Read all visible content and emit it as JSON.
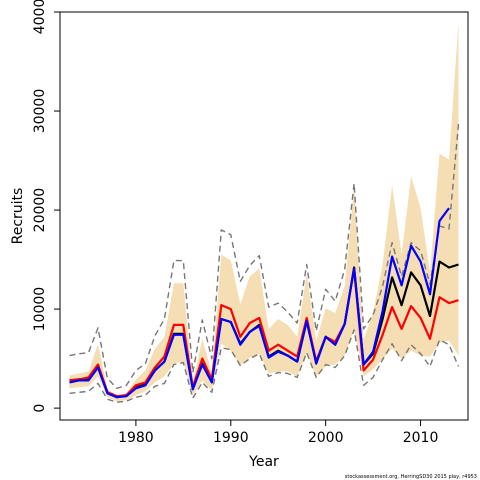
{
  "chart_data": {
    "type": "line",
    "xlabel": "Year",
    "ylabel": "Recruits",
    "xlim": [
      1972,
      2015
    ],
    "ylim": [
      -1200,
      40000
    ],
    "x_ticks": [
      1980,
      1990,
      2000,
      2010
    ],
    "y_ticks": [
      0,
      10000,
      20000,
      30000,
      40000
    ],
    "grid": false,
    "legend": "none",
    "footnote": "stockassessment.org, HerringSD30 2015 play, r4953",
    "x": [
      1973,
      1974,
      1975,
      1976,
      1977,
      1978,
      1979,
      1980,
      1981,
      1982,
      1983,
      1984,
      1985,
      1986,
      1987,
      1988,
      1989,
      1990,
      1991,
      1992,
      1993,
      1994,
      1995,
      1996,
      1997,
      1998,
      1999,
      2000,
      2001,
      2002,
      2003,
      2004,
      2005,
      2006,
      2007,
      2008,
      2009,
      2010,
      2011,
      2012,
      2013,
      2014
    ],
    "band": {
      "color": "#f5deb3",
      "lower": [
        2000,
        2100,
        2200,
        3200,
        1100,
        700,
        800,
        1300,
        1700,
        2600,
        3200,
        4500,
        4700,
        1300,
        2800,
        1800,
        6500,
        5800,
        4300,
        5100,
        5500,
        3500,
        3700,
        3700,
        3200,
        5500,
        3200,
        4200,
        4400,
        5300,
        8000,
        3200,
        3900,
        5000,
        6000,
        5000,
        5800,
        5300,
        5200,
        6600,
        6800,
        5300
      ],
      "upper": [
        3300,
        3500,
        3700,
        6500,
        2000,
        1200,
        1500,
        2900,
        3800,
        6000,
        7200,
        12600,
        12600,
        2600,
        7000,
        3600,
        15500,
        14900,
        10500,
        13300,
        14100,
        8000,
        9000,
        8400,
        7200,
        13600,
        6800,
        10100,
        9600,
        12300,
        22300,
        6900,
        9700,
        14500,
        22500,
        15500,
        23400,
        20200,
        13700,
        25700,
        25100,
        39000
      ]
    },
    "series": [
      {
        "color": "#000000",
        "dashed": false,
        "values": [
          2800,
          2900,
          3000,
          4300,
          1600,
          1100,
          1300,
          2100,
          2400,
          3800,
          4700,
          7500,
          7500,
          2100,
          4500,
          2700,
          9000,
          8700,
          6500,
          7700,
          8400,
          5200,
          5800,
          5300,
          4700,
          8800,
          4700,
          7200,
          6400,
          8500,
          14200,
          4400,
          5500,
          9000,
          13200,
          10400,
          13700,
          12400,
          9300,
          14800,
          14200,
          14500
        ]
      },
      {
        "color": "#ff0000",
        "dashed": false,
        "values": [
          2800,
          2900,
          3100,
          4400,
          1600,
          1200,
          1300,
          2300,
          2600,
          4100,
          5200,
          8400,
          8400,
          2100,
          5000,
          2900,
          10400,
          10000,
          7200,
          8600,
          9100,
          5800,
          6400,
          5800,
          5200,
          9100,
          4700,
          7200,
          6700,
          8500,
          14100,
          3800,
          4900,
          7400,
          10200,
          8000,
          10300,
          9100,
          7000,
          11200,
          10600,
          10900
        ]
      },
      {
        "color": "#0000ff",
        "dashed": false,
        "values": [
          2600,
          2800,
          2800,
          4100,
          1500,
          1100,
          1200,
          2000,
          2300,
          3800,
          4700,
          7400,
          7400,
          1900,
          4400,
          2600,
          9000,
          8700,
          6400,
          7700,
          8300,
          5100,
          5700,
          5300,
          4700,
          8800,
          4500,
          7200,
          6400,
          8500,
          14100,
          4400,
          5700,
          9800,
          15300,
          12400,
          16400,
          14800,
          11500,
          18900,
          20200,
          null
        ]
      },
      {
        "color": "#777777",
        "dashed": true,
        "values": [
          5300,
          5500,
          5600,
          8100,
          3000,
          2000,
          2300,
          3800,
          4500,
          7300,
          9000,
          14900,
          14900,
          3600,
          8900,
          5000,
          18000,
          17500,
          12800,
          14400,
          15400,
          10200,
          10600,
          9700,
          8600,
          14500,
          7800,
          12000,
          10800,
          14000,
          22700,
          8000,
          9400,
          12300,
          16700,
          13300,
          16700,
          15900,
          12500,
          18400,
          18100,
          28700
        ]
      },
      {
        "color": "#777777",
        "dashed": true,
        "values": [
          1500,
          1600,
          1700,
          2500,
          900,
          600,
          700,
          1100,
          1300,
          2200,
          2500,
          4400,
          4600,
          1000,
          2600,
          1600,
          6100,
          5900,
          4300,
          5000,
          5500,
          3200,
          3600,
          3500,
          3100,
          5600,
          3100,
          4400,
          4100,
          5300,
          7900,
          2300,
          3100,
          4900,
          6500,
          4800,
          6400,
          5500,
          4200,
          6900,
          6400,
          4200
        ]
      }
    ]
  }
}
